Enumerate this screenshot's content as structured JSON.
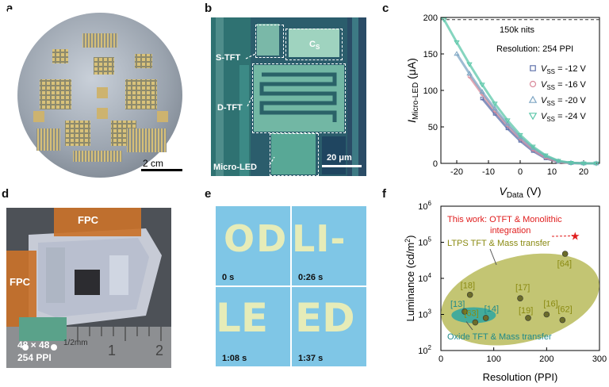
{
  "panels": {
    "a": {
      "label": "a",
      "scale": "2 cm"
    },
    "b": {
      "label": "b",
      "stft": "S-TFT",
      "dtft": "D-TFT",
      "microled": "Micro-LED",
      "cs_main": "C",
      "cs_sub": "S",
      "scale": "20 μm"
    },
    "c": {
      "label": "c"
    },
    "d": {
      "label": "d",
      "fpc_top": "FPC",
      "fpc_left": "FPC",
      "array": "48 × 48",
      "ppi": "254 PPI",
      "ruler_unit": "1/2mm",
      "ruler_1": "1",
      "ruler_2": "2"
    },
    "e": {
      "label": "e",
      "frames": [
        {
          "time": "0 s",
          "text": "OD"
        },
        {
          "time": "0:26 s",
          "text": "LI-"
        },
        {
          "time": "1:08 s",
          "text": "LE"
        },
        {
          "time": "1:37 s",
          "text": "ED"
        }
      ]
    },
    "f": {
      "label": "f"
    }
  },
  "chart_data": [
    {
      "type": "line",
      "panel": "c",
      "xlabel_main": "V",
      "xlabel_sub": "Data",
      "xlabel_unit": " (V)",
      "ylabel_main": "I",
      "ylabel_sub": "Micro-LED",
      "ylabel_unit": " (μA)",
      "xlim": [
        -25,
        25
      ],
      "ylim": [
        0,
        200
      ],
      "xticks": [
        -20,
        -10,
        0,
        10,
        20
      ],
      "yticks": [
        0,
        50,
        100,
        150,
        200
      ],
      "reference_line": {
        "y": 197,
        "label": "150k nits"
      },
      "annotation": "Resolution:  254 PPI",
      "legend_position": "right",
      "series": [
        {
          "name": "-12 V",
          "symbol": "square",
          "color": "#5b6ea8",
          "x": [
            -12,
            -8,
            -4,
            0,
            4,
            8,
            12,
            16,
            20,
            24
          ],
          "y": [
            89,
            68,
            48,
            31,
            17,
            7,
            2,
            0.5,
            0,
            0
          ]
        },
        {
          "name": "-16 V",
          "symbol": "circle",
          "color": "#d9899a",
          "x": [
            -16,
            -12,
            -8,
            -4,
            0,
            4,
            8,
            12,
            16,
            20,
            24
          ],
          "y": [
            119,
            95,
            72,
            52,
            34,
            19,
            8,
            2,
            0.5,
            0,
            0
          ]
        },
        {
          "name": "-20 V",
          "symbol": "triangle-up",
          "color": "#7ea6c4",
          "x": [
            -20,
            -16,
            -12,
            -8,
            -4,
            0,
            4,
            8,
            12,
            16,
            20,
            24
          ],
          "y": [
            150,
            123,
            98,
            75,
            54,
            36,
            21,
            10,
            3,
            0.6,
            0,
            0
          ]
        },
        {
          "name": "-24 V",
          "symbol": "triangle-down",
          "color": "#5cc7a9",
          "x": [
            -24,
            -20,
            -16,
            -12,
            -8,
            -4,
            0,
            4,
            8,
            12,
            16,
            20,
            24
          ],
          "y": [
            197,
            166,
            136,
            108,
            82,
            59,
            39,
            23,
            11,
            3.5,
            0.8,
            0,
            0
          ]
        }
      ],
      "legend_prefix_main": "V",
      "legend_prefix_sub": "SS",
      "legend_eq": " = "
    },
    {
      "type": "scatter",
      "panel": "f",
      "xlabel": "Resolution (PPI)",
      "ylabel_main": "Luminance (cd/m",
      "ylabel_sup": "2",
      "ylabel_end": ")",
      "xlim": [
        0,
        300
      ],
      "ylim_log10": [
        2,
        6
      ],
      "xticks": [
        0,
        100,
        200,
        300
      ],
      "yticks": [
        {
          "exp": "2"
        },
        {
          "exp": "3"
        },
        {
          "exp": "4"
        },
        {
          "exp": "5"
        },
        {
          "exp": "6"
        }
      ],
      "ytick_base": "10",
      "points": [
        {
          "label": "[13]",
          "x": 45,
          "y": 1200,
          "group": "oxide"
        },
        {
          "label": "[63]",
          "x": 65,
          "y": 600,
          "group": "ltps"
        },
        {
          "label": "[14]",
          "x": 85,
          "y": 800,
          "group": "oxide"
        },
        {
          "label": "[18]",
          "x": 55,
          "y": 3500,
          "group": "ltps"
        },
        {
          "label": "[17]",
          "x": 150,
          "y": 2800,
          "group": "ltps"
        },
        {
          "label": "[19]",
          "x": 165,
          "y": 800,
          "group": "ltps"
        },
        {
          "label": "[16]",
          "x": 200,
          "y": 1000,
          "group": "ltps"
        },
        {
          "label": "[62]",
          "x": 230,
          "y": 700,
          "group": "ltps"
        },
        {
          "label": "[64]",
          "x": 235,
          "y": 48000,
          "group": "ltps"
        },
        {
          "label": "This work",
          "x": 254,
          "y": 150000,
          "group": "this"
        }
      ],
      "annotations": {
        "this_work_1": "This work: OTFT & Monolithic",
        "this_work_2": "integration",
        "ltps": "LTPS TFT & Mass transfer",
        "oxide": "Oxide TFT & Mass transfer"
      },
      "colors": {
        "ltps_fill": "#b8bb5a",
        "ltps_text": "#8a8a12",
        "oxide_fill": "#35a7a0",
        "oxide_text": "#1f8a8a",
        "this": "#e01d1d"
      }
    }
  ]
}
